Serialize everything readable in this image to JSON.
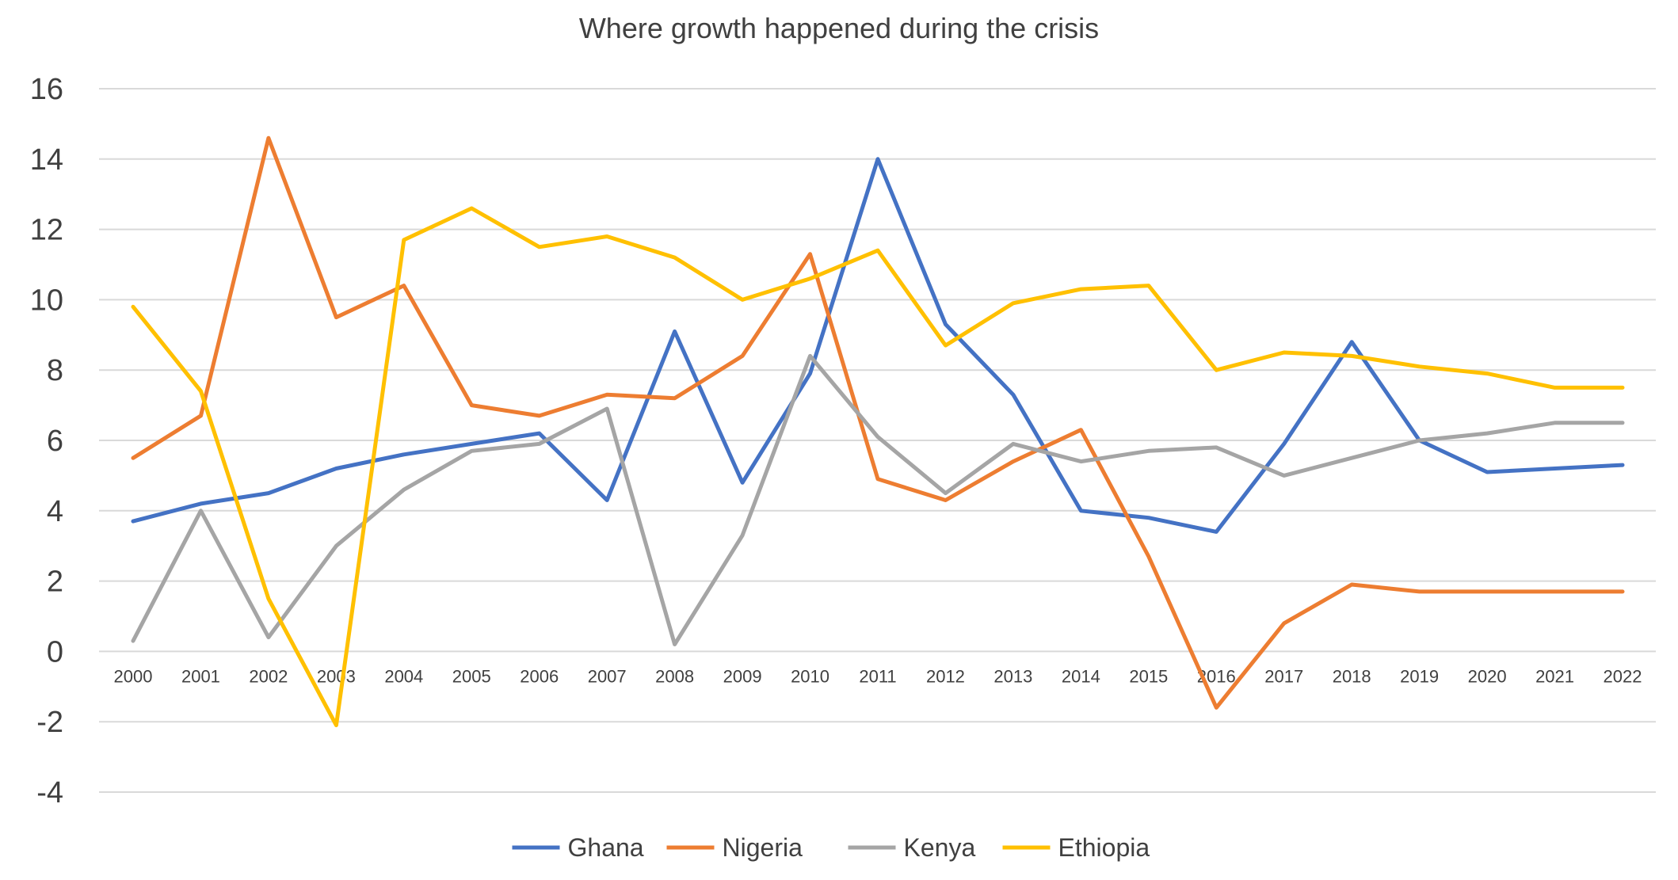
{
  "chart_data": {
    "type": "line",
    "title": "Where growth happened during the crisis",
    "xlabel": "",
    "ylabel": "",
    "categories": [
      "2000",
      "2001",
      "2002",
      "2003",
      "2004",
      "2005",
      "2006",
      "2007",
      "2008",
      "2009",
      "2010",
      "2011",
      "2012",
      "2013",
      "2014",
      "2015",
      "2016",
      "2017",
      "2018",
      "2019",
      "2020",
      "2021",
      "2022"
    ],
    "ylim": [
      -4,
      16
    ],
    "yticks": [
      -4,
      -2,
      0,
      2,
      4,
      6,
      8,
      10,
      12,
      14,
      16
    ],
    "ytick_labels": [
      "-4",
      "-2",
      "0",
      "2",
      "4",
      "6",
      "8",
      "10",
      "12",
      "14",
      "16"
    ],
    "grid": true,
    "legend_position": "bottom",
    "series": [
      {
        "name": "Ghana",
        "color": "#4472C4",
        "values": [
          3.7,
          4.2,
          4.5,
          5.2,
          5.6,
          5.9,
          6.2,
          4.3,
          9.1,
          4.8,
          7.9,
          14.0,
          9.3,
          7.3,
          4.0,
          3.8,
          3.4,
          5.9,
          8.8,
          6.0,
          5.1,
          5.2,
          5.3
        ]
      },
      {
        "name": "Nigeria",
        "color": "#ED7D31",
        "values": [
          5.5,
          6.7,
          14.6,
          9.5,
          10.4,
          7.0,
          6.7,
          7.3,
          7.2,
          8.4,
          11.3,
          4.9,
          4.3,
          5.4,
          6.3,
          2.7,
          -1.6,
          0.8,
          1.9,
          1.7,
          1.7,
          1.7,
          1.7
        ]
      },
      {
        "name": "Kenya",
        "color": "#A5A5A5",
        "values": [
          0.3,
          4.0,
          0.4,
          3.0,
          4.6,
          5.7,
          5.9,
          6.9,
          0.2,
          3.3,
          8.4,
          6.1,
          4.5,
          5.9,
          5.4,
          5.7,
          5.8,
          5.0,
          5.5,
          6.0,
          6.2,
          6.5,
          6.5
        ]
      },
      {
        "name": "Ethiopia",
        "color": "#FFC000",
        "values": [
          9.8,
          7.4,
          1.5,
          -2.1,
          11.7,
          12.6,
          11.5,
          11.8,
          11.2,
          10.0,
          10.6,
          11.4,
          8.7,
          9.9,
          10.3,
          10.4,
          8.0,
          8.5,
          8.4,
          8.1,
          7.9,
          7.5,
          7.5
        ]
      }
    ]
  }
}
